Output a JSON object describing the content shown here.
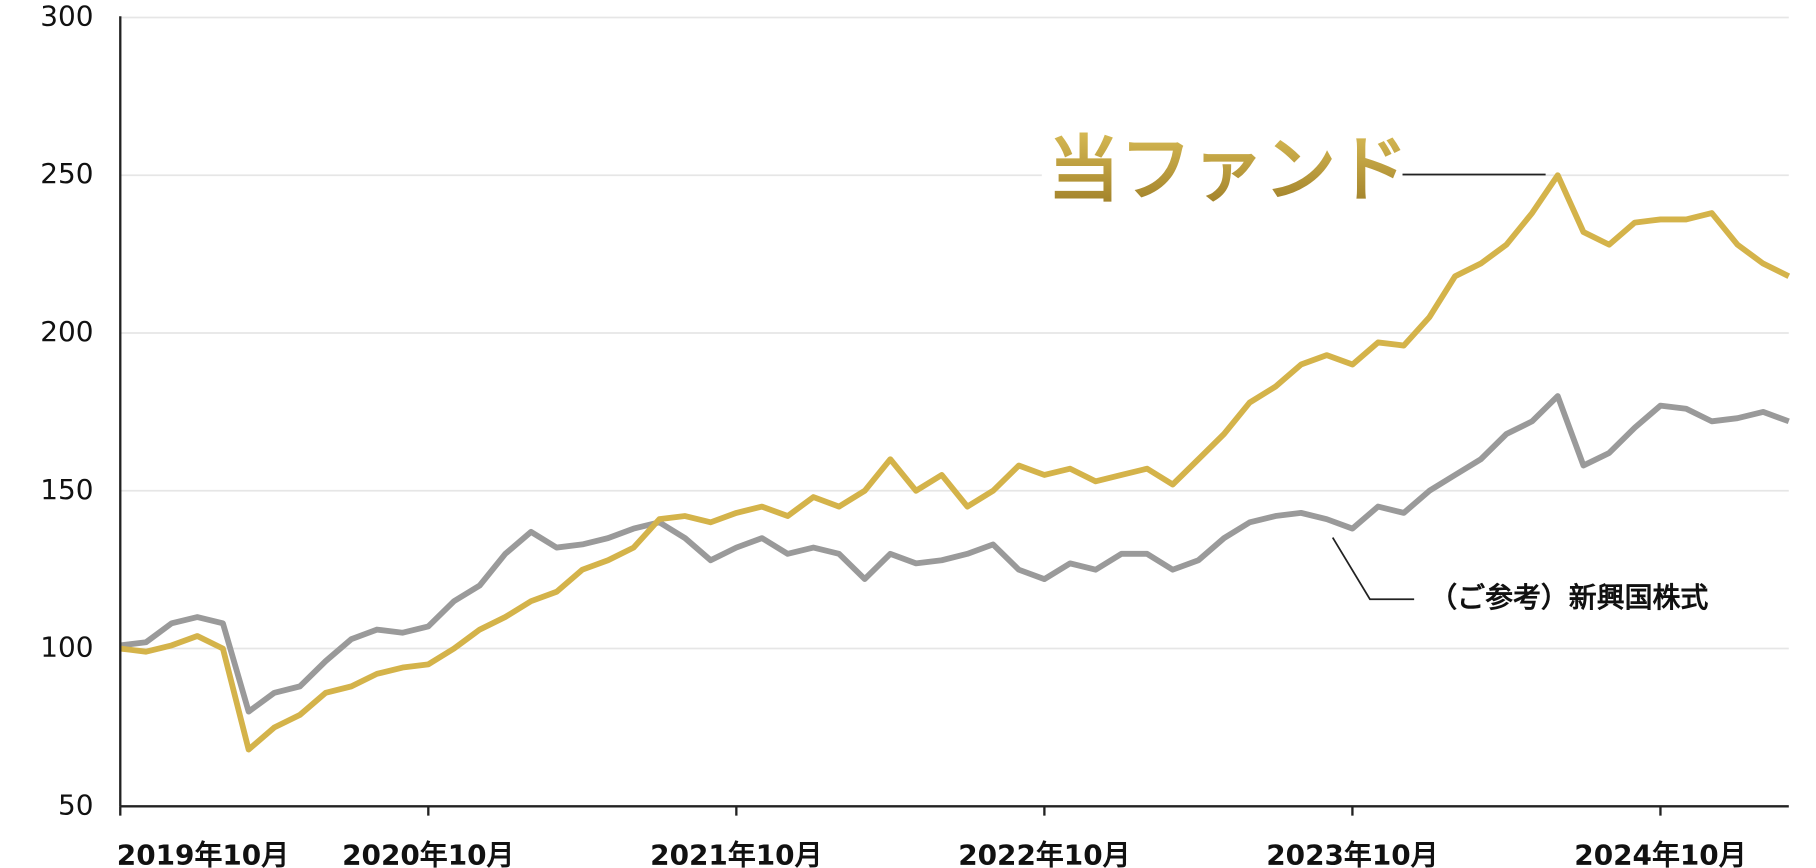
{
  "chart_data": {
    "type": "line",
    "x": [
      "2019-10",
      "2019-11",
      "2019-12",
      "2020-01",
      "2020-02",
      "2020-03",
      "2020-04",
      "2020-05",
      "2020-06",
      "2020-07",
      "2020-08",
      "2020-09",
      "2020-10",
      "2020-11",
      "2020-12",
      "2021-01",
      "2021-02",
      "2021-03",
      "2021-04",
      "2021-05",
      "2021-06",
      "2021-07",
      "2021-08",
      "2021-09",
      "2021-10",
      "2021-11",
      "2021-12",
      "2022-01",
      "2022-02",
      "2022-03",
      "2022-04",
      "2022-05",
      "2022-06",
      "2022-07",
      "2022-08",
      "2022-09",
      "2022-10",
      "2022-11",
      "2022-12",
      "2023-01",
      "2023-02",
      "2023-03",
      "2023-04",
      "2023-05",
      "2023-06",
      "2023-07",
      "2023-08",
      "2023-09",
      "2023-10",
      "2023-11",
      "2023-12",
      "2024-01",
      "2024-02",
      "2024-03",
      "2024-04",
      "2024-05",
      "2024-06",
      "2024-07",
      "2024-08",
      "2024-09",
      "2024-10",
      "2024-11",
      "2024-12",
      "2025-01",
      "2025-02",
      "2025-03"
    ],
    "series": [
      {
        "name": "当ファンド",
        "color": "#d4b34a",
        "values": [
          100,
          99,
          101,
          104,
          100,
          68,
          75,
          79,
          86,
          88,
          92,
          94,
          95,
          100,
          106,
          110,
          115,
          118,
          125,
          128,
          132,
          141,
          142,
          140,
          143,
          145,
          142,
          148,
          145,
          150,
          160,
          150,
          155,
          145,
          150,
          158,
          155,
          157,
          153,
          155,
          157,
          152,
          160,
          168,
          178,
          183,
          190,
          193,
          190,
          197,
          196,
          205,
          218,
          222,
          228,
          238,
          250,
          232,
          228,
          235,
          236,
          236,
          238,
          228,
          222,
          218
        ]
      },
      {
        "name": "（ご参考）新興国株式",
        "color": "#9a9a9a",
        "values": [
          101,
          102,
          108,
          110,
          108,
          80,
          86,
          88,
          96,
          103,
          106,
          105,
          107,
          115,
          120,
          130,
          137,
          132,
          133,
          135,
          138,
          140,
          135,
          128,
          132,
          135,
          130,
          132,
          130,
          122,
          130,
          127,
          128,
          130,
          133,
          125,
          122,
          127,
          125,
          130,
          130,
          125,
          128,
          135,
          140,
          142,
          143,
          141,
          138,
          145,
          143,
          150,
          155,
          160,
          168,
          172,
          180,
          158,
          162,
          170,
          177,
          176,
          172,
          173,
          175,
          172
        ]
      }
    ],
    "xticks": [
      {
        "value": "2019-10",
        "label": "2019年10月"
      },
      {
        "value": "2020-10",
        "label": "2020年10月"
      },
      {
        "value": "2021-10",
        "label": "2021年10月"
      },
      {
        "value": "2022-10",
        "label": "2022年10月"
      },
      {
        "value": "2023-10",
        "label": "2023年10月"
      },
      {
        "value": "2024-10",
        "label": "2024年10月"
      }
    ],
    "ylim": [
      50,
      300
    ],
    "yticks": [
      50,
      100,
      150,
      200,
      250,
      300
    ],
    "grid": true
  }
}
